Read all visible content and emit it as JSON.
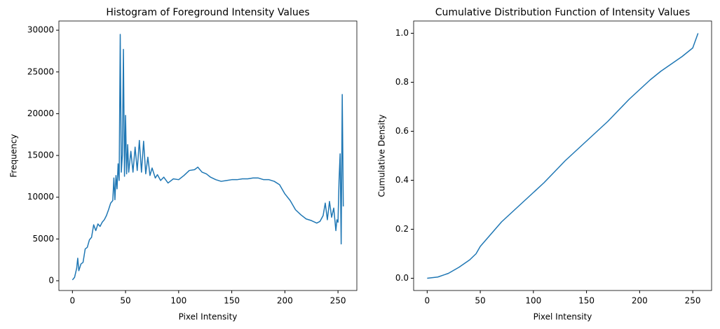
{
  "chart_data": [
    {
      "type": "line",
      "title": "Histogram of Foreground Intensity Values",
      "x_label": "Pixel Intensity",
      "y_label": "Frequency",
      "xlim": [
        -12.75,
        267.75
      ],
      "ylim": [
        -1170,
        31100
      ],
      "xticks": [
        0,
        50,
        100,
        150,
        200,
        250
      ],
      "yticks": [
        0,
        5000,
        10000,
        15000,
        20000,
        25000,
        30000
      ],
      "series": [
        {
          "color": "#1f77b4",
          "x": [
            0,
            2,
            4,
            5,
            6,
            8,
            10,
            12,
            14,
            16,
            18,
            20,
            22,
            24,
            26,
            28,
            30,
            32,
            34,
            36,
            38,
            39,
            40,
            41,
            42,
            43,
            44,
            45,
            46,
            47,
            48,
            49,
            50,
            51,
            52,
            53,
            55,
            57,
            59,
            61,
            63,
            65,
            67,
            69,
            71,
            73,
            75,
            78,
            80,
            83,
            86,
            90,
            95,
            100,
            105,
            110,
            115,
            118,
            122,
            126,
            130,
            135,
            140,
            145,
            150,
            155,
            160,
            165,
            170,
            175,
            180,
            185,
            190,
            195,
            200,
            205,
            210,
            215,
            220,
            225,
            230,
            233,
            236,
            238,
            240,
            242,
            244,
            246,
            248,
            249,
            250,
            251,
            252,
            253,
            254,
            255
          ],
          "values": [
            100,
            400,
            1500,
            2700,
            1200,
            2000,
            2200,
            3800,
            4000,
            4900,
            5200,
            6700,
            6000,
            6800,
            6500,
            7000,
            7300,
            7800,
            8500,
            9300,
            9600,
            12300,
            9700,
            12600,
            11000,
            14000,
            12000,
            29500,
            13000,
            15000,
            27700,
            12500,
            19800,
            12800,
            16300,
            13000,
            15500,
            13000,
            16000,
            13200,
            16800,
            13000,
            16700,
            12800,
            14800,
            12600,
            13500,
            12300,
            12700,
            12000,
            12400,
            11700,
            12200,
            12100,
            12600,
            13200,
            13300,
            13600,
            13000,
            12800,
            12400,
            12100,
            11900,
            12000,
            12100,
            12100,
            12200,
            12200,
            12300,
            12300,
            12100,
            12100,
            11900,
            11500,
            10400,
            9600,
            8500,
            7900,
            7400,
            7200,
            6900,
            7100,
            7800,
            9300,
            7300,
            9500,
            7600,
            8700,
            6000,
            7300,
            7000,
            12000,
            15200,
            4400,
            22300,
            8900
          ]
        }
      ]
    },
    {
      "type": "line",
      "title": "Cumulative Distribution Function of Intensity Values",
      "x_label": "Pixel Intensity",
      "y_label": "Cumulative Density",
      "xlim": [
        -12.75,
        267.75
      ],
      "ylim": [
        -0.05,
        1.05
      ],
      "xticks": [
        0,
        50,
        100,
        150,
        200,
        250
      ],
      "yticks": [
        {
          "value": 0,
          "label": "0.0"
        },
        0.2,
        0.4,
        0.6,
        0.8,
        {
          "value": 1,
          "label": "1.0"
        }
      ],
      "series": [
        {
          "color": "#1f77b4",
          "x": [
            0,
            10,
            20,
            30,
            40,
            46,
            50,
            60,
            70,
            80,
            90,
            100,
            110,
            120,
            130,
            140,
            150,
            160,
            170,
            180,
            190,
            200,
            210,
            220,
            230,
            240,
            250,
            255
          ],
          "values": [
            0,
            0.005,
            0.02,
            0.045,
            0.075,
            0.1,
            0.13,
            0.18,
            0.23,
            0.27,
            0.31,
            0.35,
            0.39,
            0.435,
            0.48,
            0.52,
            0.56,
            0.6,
            0.64,
            0.685,
            0.73,
            0.77,
            0.81,
            0.845,
            0.875,
            0.905,
            0.94,
            1.0
          ]
        }
      ]
    }
  ]
}
